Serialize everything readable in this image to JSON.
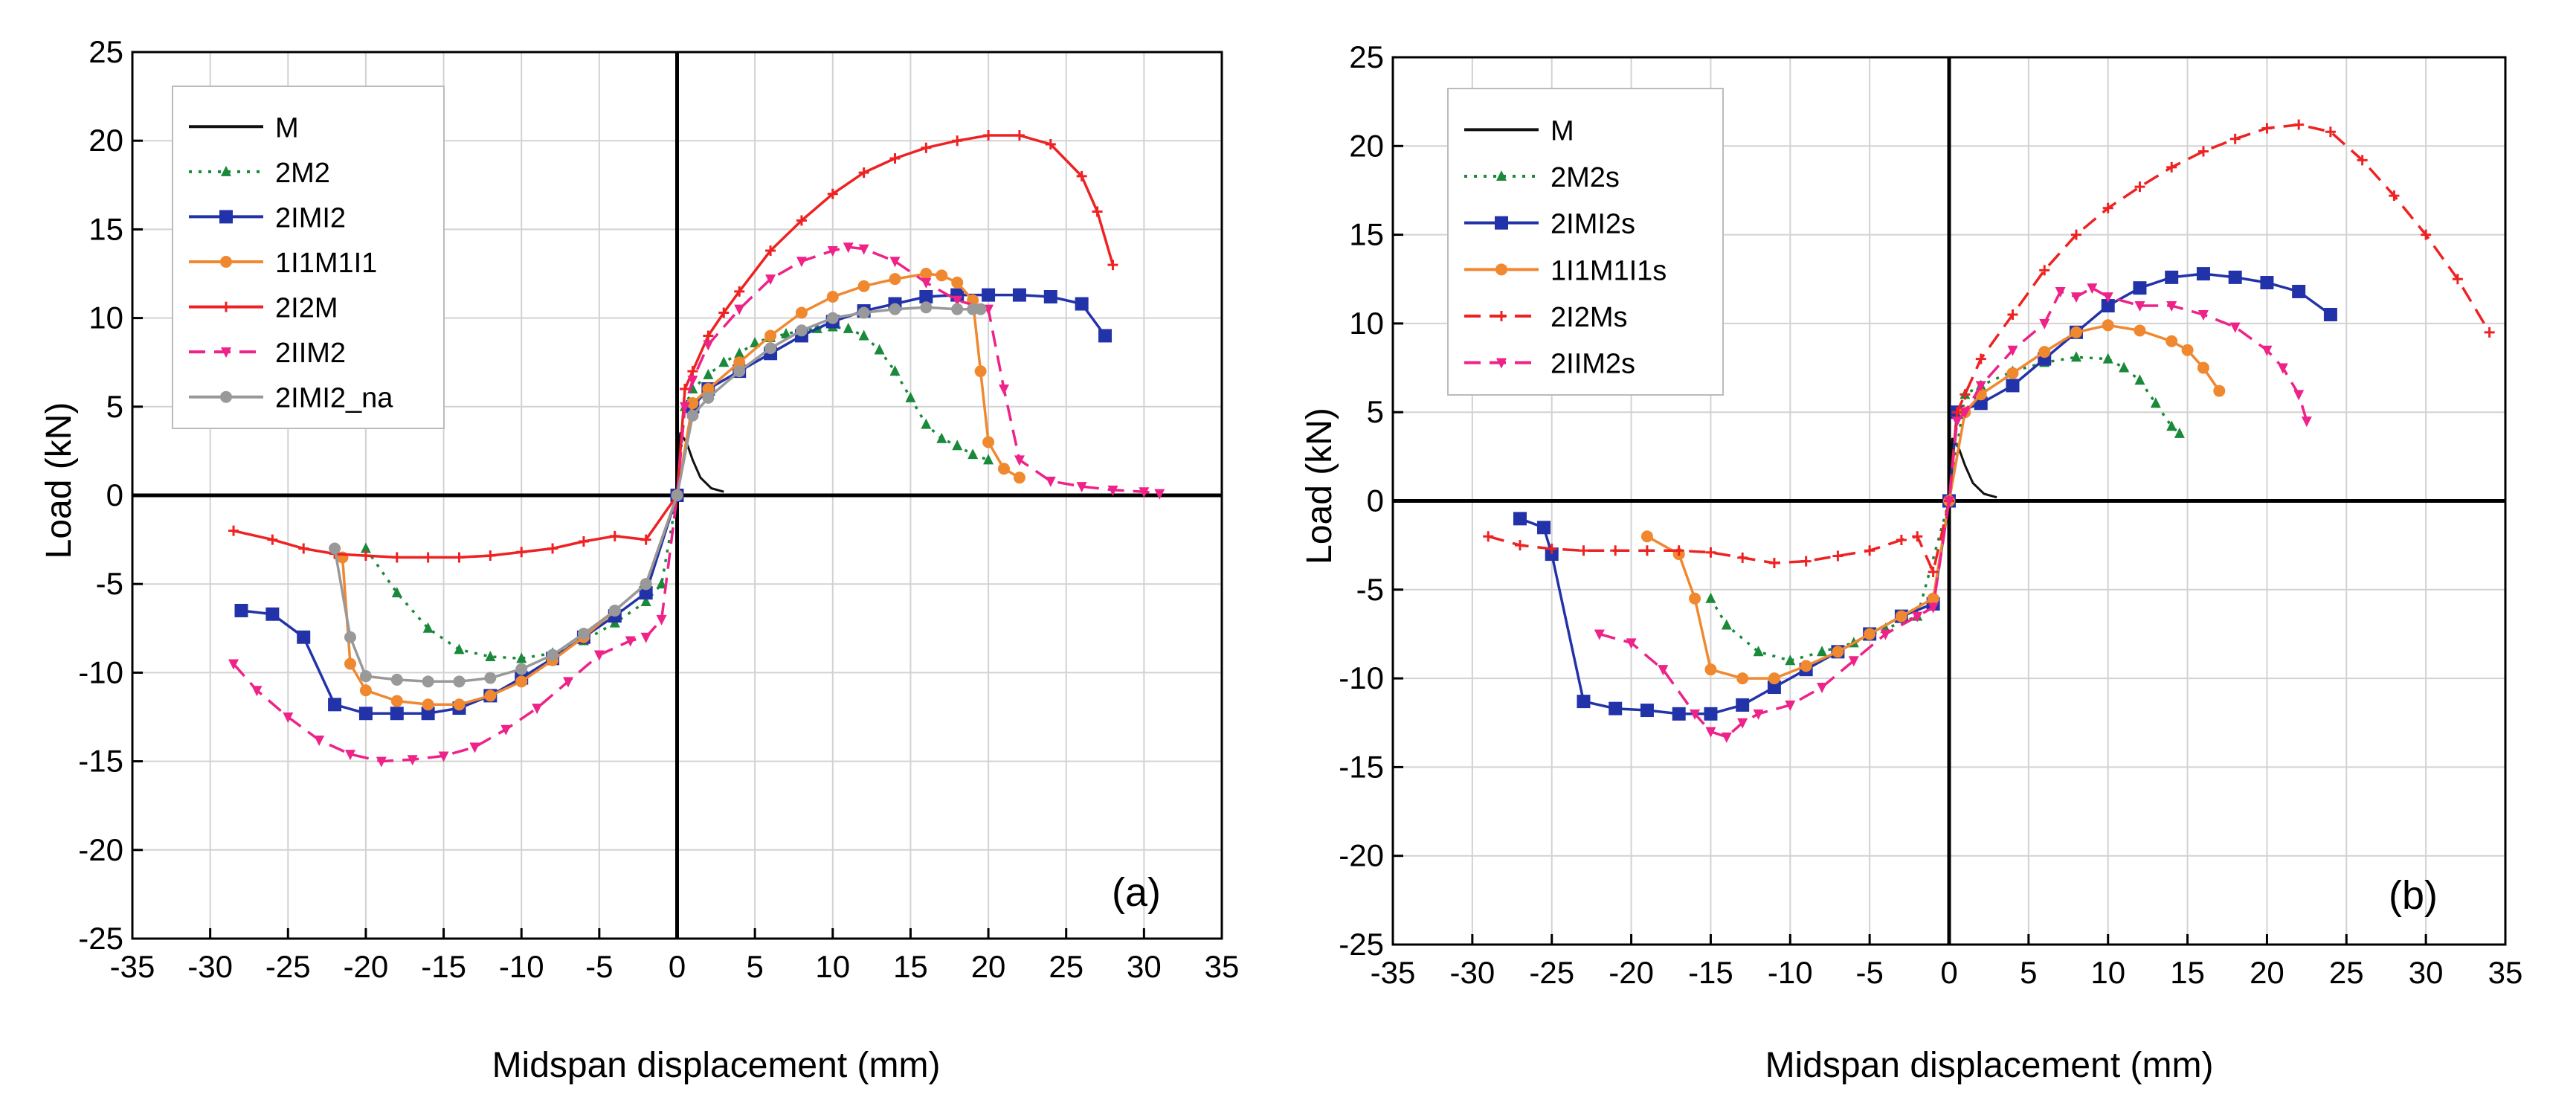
{
  "chart_data": [
    {
      "type": "line",
      "panel_label": "(a)",
      "xlabel": "Midspan displacement (mm)",
      "ylabel": "Load (kN)",
      "xlim": [
        -35,
        35
      ],
      "ylim": [
        -25,
        25
      ],
      "xticks": [
        "-35",
        "-30",
        "-25",
        "-20",
        "-15",
        "-10",
        "-5",
        "0",
        "5",
        "10",
        "15",
        "20",
        "25",
        "30",
        "35"
      ],
      "yticks": [
        "-25",
        "-20",
        "-15",
        "-10",
        "-5",
        "0",
        "5",
        "10",
        "15",
        "20",
        "25"
      ],
      "grid": true,
      "legend_position": "top-left",
      "series": [
        {
          "name": "M",
          "color": "#111111",
          "dash": "solid",
          "marker": "none",
          "x": [
            0,
            0.2,
            0.6,
            1.0,
            1.5,
            2.2,
            3.0
          ],
          "y": [
            0,
            3.5,
            3.0,
            2.0,
            1.0,
            0.4,
            0.2
          ]
        },
        {
          "name": "2M2",
          "color": "#1a8a3a",
          "dash": "dot",
          "marker": "triangle",
          "x": [
            -20,
            -18,
            -16,
            -14,
            -12,
            -10,
            -8,
            -6,
            -4,
            -2,
            -1,
            0,
            0.5,
            1,
            2,
            3,
            4,
            5,
            6,
            7,
            8,
            9,
            10,
            11,
            12,
            13,
            14,
            15,
            16,
            17,
            18,
            19,
            20
          ],
          "y": [
            -3,
            -5.5,
            -7.5,
            -8.7,
            -9.1,
            -9.2,
            -8.9,
            -8.2,
            -7.2,
            -6,
            -5,
            0,
            5,
            6,
            6.8,
            7.5,
            8,
            8.6,
            8.9,
            9.1,
            9.3,
            9.4,
            9.5,
            9.4,
            9,
            8.2,
            7,
            5.5,
            4,
            3.2,
            2.8,
            2.3,
            2
          ]
        },
        {
          "name": "2IMI2",
          "color": "#2233aa",
          "dash": "solid",
          "marker": "square",
          "x": [
            -28,
            -26,
            -24,
            -22,
            -20,
            -18,
            -16,
            -14,
            -12,
            -10,
            -8,
            -6,
            -4,
            -2,
            0,
            1,
            2,
            4,
            6,
            8,
            10,
            12,
            14,
            16,
            18,
            20,
            22,
            24,
            26,
            27.5
          ],
          "y": [
            -6.5,
            -6.7,
            -8,
            -11.8,
            -12.3,
            -12.3,
            -12.3,
            -12,
            -11.3,
            -10.3,
            -9.2,
            -8,
            -6.8,
            -5.5,
            0,
            5,
            6,
            7,
            8,
            9,
            9.8,
            10.4,
            10.8,
            11.2,
            11.3,
            11.3,
            11.3,
            11.2,
            10.8,
            9
          ]
        },
        {
          "name": "1I1M1I1",
          "color": "#f08830",
          "dash": "solid",
          "marker": "circle",
          "x": [
            -21.5,
            -21,
            -20,
            -18,
            -16,
            -14,
            -12,
            -10,
            -8,
            -6,
            -4,
            -2,
            0,
            1,
            2,
            4,
            6,
            8,
            10,
            12,
            14,
            16,
            17,
            18,
            19,
            19.5,
            20,
            21,
            22
          ],
          "y": [
            -3.5,
            -9.5,
            -11,
            -11.6,
            -11.8,
            -11.8,
            -11.3,
            -10.5,
            -9.3,
            -8,
            -6.5,
            -5,
            0,
            5.2,
            6,
            7.5,
            9,
            10.3,
            11.2,
            11.8,
            12.2,
            12.5,
            12.4,
            12,
            11,
            7,
            3,
            1.5,
            1
          ]
        },
        {
          "name": "2I2M",
          "color": "#ee2222",
          "dash": "solid",
          "marker": "plus",
          "x": [
            -28.5,
            -26,
            -24,
            -22,
            -20,
            -18,
            -16,
            -14,
            -12,
            -10,
            -8,
            -6,
            -4,
            -2,
            0,
            0.5,
            1,
            2,
            3,
            4,
            6,
            8,
            10,
            12,
            14,
            16,
            18,
            20,
            22,
            24,
            26,
            27,
            28
          ],
          "y": [
            -2,
            -2.5,
            -3,
            -3.3,
            -3.4,
            -3.5,
            -3.5,
            -3.5,
            -3.4,
            -3.2,
            -3,
            -2.6,
            -2.3,
            -2.5,
            0,
            6,
            7,
            9,
            10.3,
            11.5,
            13.8,
            15.5,
            17,
            18.2,
            19,
            19.6,
            20,
            20.3,
            20.3,
            19.8,
            18,
            16,
            13
          ]
        },
        {
          "name": "2IIM2",
          "color": "#ee2288",
          "dash": "dash",
          "marker": "down-triangle",
          "x": [
            -28.5,
            -27,
            -25,
            -23,
            -21,
            -19,
            -17,
            -15,
            -13,
            -11,
            -9,
            -7,
            -5,
            -3,
            -2,
            -1,
            0,
            0.5,
            1,
            2,
            4,
            6,
            8,
            10,
            11,
            12,
            14,
            16,
            18,
            20,
            21,
            22,
            24,
            26,
            28,
            30,
            31
          ],
          "y": [
            -9.5,
            -11,
            -12.5,
            -13.8,
            -14.6,
            -15,
            -14.9,
            -14.7,
            -14.2,
            -13.2,
            -12,
            -10.5,
            -9,
            -8.2,
            -8,
            -7,
            0,
            5,
            6.5,
            8.5,
            10.5,
            12.2,
            13.2,
            13.8,
            14,
            13.9,
            13.2,
            12,
            11,
            10.5,
            6,
            2,
            0.8,
            0.5,
            0.3,
            0.2,
            0.1
          ]
        },
        {
          "name": "2IMI2_na",
          "color": "#999999",
          "dash": "solid",
          "marker": "circle",
          "x": [
            -22,
            -21,
            -20,
            -18,
            -16,
            -14,
            -12,
            -10,
            -8,
            -6,
            -4,
            -2,
            0,
            1,
            2,
            4,
            6,
            8,
            10,
            12,
            14,
            16,
            18,
            19,
            19.5
          ],
          "y": [
            -3,
            -8,
            -10.2,
            -10.4,
            -10.5,
            -10.5,
            -10.3,
            -9.8,
            -9,
            -7.8,
            -6.5,
            -5,
            0,
            4.5,
            5.5,
            7,
            8.3,
            9.3,
            10,
            10.3,
            10.5,
            10.6,
            10.5,
            10.5,
            10.5
          ]
        }
      ]
    },
    {
      "type": "line",
      "panel_label": "(b)",
      "xlabel": "Midspan displacement (mm)",
      "ylabel": "Load (kN)",
      "xlim": [
        -35,
        35
      ],
      "ylim": [
        -25,
        25
      ],
      "xticks": [
        "-35",
        "-30",
        "-25",
        "-20",
        "-15",
        "-10",
        "-5",
        "0",
        "5",
        "10",
        "15",
        "20",
        "25",
        "30",
        "35"
      ],
      "yticks": [
        "-25",
        "-20",
        "-15",
        "-10",
        "-5",
        "0",
        "5",
        "10",
        "15",
        "20",
        "25"
      ],
      "grid": true,
      "legend_position": "top-left",
      "series": [
        {
          "name": "M",
          "color": "#111111",
          "dash": "solid",
          "marker": "none",
          "x": [
            0,
            0.2,
            0.6,
            1.0,
            1.5,
            2.2,
            3.0
          ],
          "y": [
            0,
            3.5,
            3.0,
            2.0,
            1.0,
            0.4,
            0.2
          ]
        },
        {
          "name": "2M2s",
          "color": "#1a8a3a",
          "dash": "dot",
          "marker": "triangle",
          "x": [
            -15,
            -14,
            -12,
            -10,
            -8,
            -6,
            -4,
            -2,
            0,
            1,
            2,
            4,
            6,
            8,
            10,
            11,
            12,
            13,
            14,
            14.5
          ],
          "y": [
            -5.5,
            -7,
            -8.5,
            -9,
            -8.5,
            -8,
            -7.2,
            -6.5,
            0,
            6,
            6.5,
            7.3,
            7.8,
            8.1,
            8,
            7.5,
            6.8,
            5.5,
            4.2,
            3.8
          ]
        },
        {
          "name": "2IMI2s",
          "color": "#2233aa",
          "dash": "solid",
          "marker": "square",
          "x": [
            -27,
            -25.5,
            -25,
            -23,
            -21,
            -19,
            -17,
            -15,
            -13,
            -11,
            -9,
            -7,
            -5,
            -3,
            -1,
            0,
            0.5,
            2,
            4,
            6,
            8,
            10,
            12,
            14,
            16,
            18,
            20,
            22,
            24
          ],
          "y": [
            -1,
            -1.5,
            -3,
            -11.3,
            -11.7,
            -11.8,
            -12,
            -12,
            -11.5,
            -10.5,
            -9.5,
            -8.5,
            -7.5,
            -6.5,
            -5.8,
            0,
            5,
            5.5,
            6.5,
            8,
            9.5,
            11,
            12,
            12.6,
            12.8,
            12.6,
            12.3,
            11.8,
            10.5
          ]
        },
        {
          "name": "1I1M1I1s",
          "color": "#f08830",
          "dash": "solid",
          "marker": "circle",
          "x": [
            -19,
            -17,
            -16,
            -15,
            -13,
            -11,
            -9,
            -7,
            -5,
            -3,
            -1,
            0,
            1,
            2,
            4,
            6,
            8,
            10,
            12,
            14,
            15,
            16,
            17
          ],
          "y": [
            -2,
            -3,
            -5.5,
            -9.5,
            -10,
            -10,
            -9.3,
            -8.5,
            -7.5,
            -6.5,
            -5.5,
            0,
            5,
            6,
            7.2,
            8.4,
            9.5,
            9.9,
            9.6,
            9,
            8.5,
            7.5,
            6.2
          ]
        },
        {
          "name": "2I2Ms",
          "color": "#ee2222",
          "dash": "dash",
          "marker": "plus",
          "x": [
            -29,
            -27,
            -25,
            -23,
            -21,
            -19,
            -17,
            -15,
            -13,
            -11,
            -9,
            -7,
            -5,
            -3,
            -2,
            -1,
            0,
            0.5,
            1,
            2,
            4,
            6,
            8,
            10,
            12,
            14,
            16,
            18,
            20,
            22,
            24,
            26,
            28,
            30,
            32,
            34
          ],
          "y": [
            -2,
            -2.5,
            -2.7,
            -2.8,
            -2.8,
            -2.8,
            -2.8,
            -2.9,
            -3.2,
            -3.5,
            -3.4,
            -3.1,
            -2.8,
            -2.2,
            -2,
            -4,
            0,
            5,
            6,
            8,
            10.5,
            13,
            15,
            16.5,
            17.7,
            18.8,
            19.7,
            20.4,
            21,
            21.2,
            20.8,
            19.2,
            17.2,
            15,
            12.5,
            9.5
          ]
        },
        {
          "name": "2IIM2s",
          "color": "#ee2288",
          "dash": "dash",
          "marker": "down-triangle",
          "x": [
            -22,
            -20,
            -18,
            -16,
            -15,
            -14,
            -13,
            -12,
            -10,
            -8,
            -6,
            -4,
            -2,
            -1,
            0,
            0.5,
            1,
            2,
            4,
            6,
            7,
            8,
            9,
            10,
            12,
            14,
            16,
            18,
            20,
            21,
            22,
            22.5
          ],
          "y": [
            -7.5,
            -8,
            -9.5,
            -12,
            -13,
            -13.3,
            -12.5,
            -12,
            -11.5,
            -10.5,
            -9,
            -7.5,
            -6.5,
            -6,
            0,
            4.5,
            5,
            6.5,
            8.5,
            10,
            11.8,
            11.5,
            12,
            11.5,
            11,
            11,
            10.5,
            9.8,
            8.5,
            7.5,
            6,
            4.5
          ]
        }
      ]
    }
  ]
}
